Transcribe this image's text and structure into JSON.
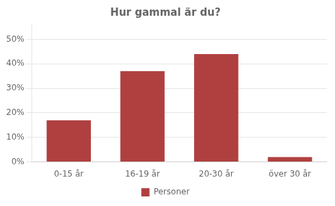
{
  "chart_data": {
    "type": "bar",
    "title": "Hur gammal är du?",
    "categories": [
      "0-15 år",
      "16-19 år",
      "20-30 år",
      "över 30 år"
    ],
    "series": [
      {
        "name": "Personer",
        "color": "#b04040",
        "values": [
          0.17,
          0.37,
          0.44,
          0.02
        ]
      }
    ],
    "ylim": [
      0,
      0.56
    ],
    "yticks": [
      {
        "value": 0.0,
        "label": "0%"
      },
      {
        "value": 0.1,
        "label": "10%"
      },
      {
        "value": 0.2,
        "label": "20%"
      },
      {
        "value": 0.3,
        "label": "30%"
      },
      {
        "value": 0.4,
        "label": "40%"
      },
      {
        "value": 0.5,
        "label": "50%"
      }
    ],
    "grid": true,
    "legend": "bottom"
  }
}
